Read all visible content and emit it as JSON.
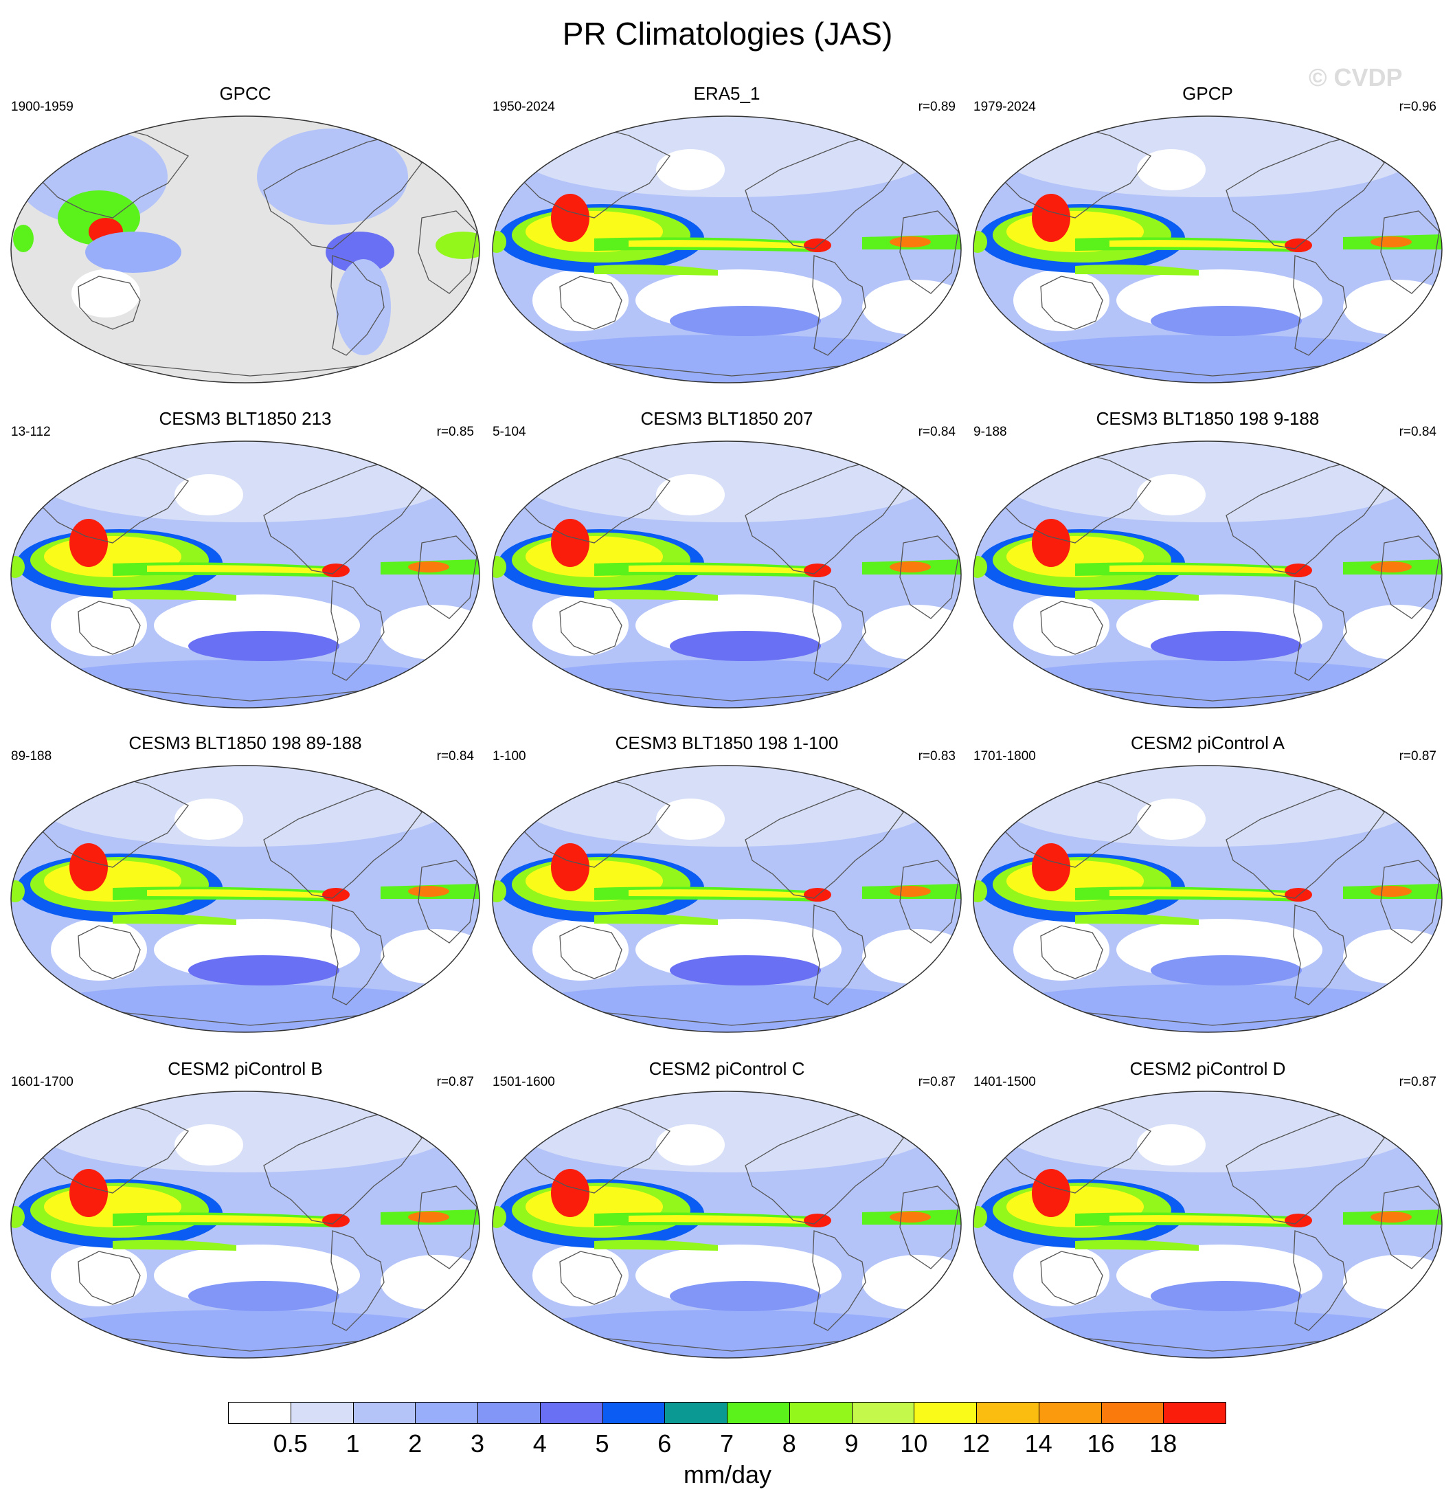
{
  "title": "PR Climatologies (JAS)",
  "watermark": "© CVDP",
  "panels": [
    {
      "title": "GPCC",
      "years": "1900-1959",
      "r": "",
      "variant": "obs_land"
    },
    {
      "title": "ERA5_1",
      "years": "1950-2024",
      "r": "r=0.89",
      "variant": "obs"
    },
    {
      "title": "GPCP",
      "years": "1979-2024",
      "r": "r=0.96",
      "variant": "obs"
    },
    {
      "title": "CESM3 BLT1850 213",
      "years": "13-112",
      "r": "r=0.85",
      "variant": "cesm3"
    },
    {
      "title": "CESM3 BLT1850 207",
      "years": "5-104",
      "r": "r=0.84",
      "variant": "cesm3"
    },
    {
      "title": "CESM3 BLT1850 198 9-188",
      "years": "9-188",
      "r": "r=0.84",
      "variant": "cesm3"
    },
    {
      "title": "CESM3 BLT1850 198 89-188",
      "years": "89-188",
      "r": "r=0.84",
      "variant": "cesm3"
    },
    {
      "title": "CESM3 BLT1850 198 1-100",
      "years": "1-100",
      "r": "r=0.83",
      "variant": "cesm3"
    },
    {
      "title": "CESM2 piControl A",
      "years": "1701-1800",
      "r": "r=0.87",
      "variant": "cesm2"
    },
    {
      "title": "CESM2 piControl B",
      "years": "1601-1700",
      "r": "r=0.87",
      "variant": "cesm2"
    },
    {
      "title": "CESM2 piControl C",
      "years": "1501-1600",
      "r": "r=0.87",
      "variant": "cesm2"
    },
    {
      "title": "CESM2 piControl D",
      "years": "1401-1500",
      "r": "r=0.87",
      "variant": "cesm2"
    }
  ],
  "colorbar": {
    "units": "mm/day",
    "colors": [
      "#ffffff",
      "#d6def8",
      "#b4c4f8",
      "#98aefa",
      "#8196f7",
      "#6a70f3",
      "#0a5cf2",
      "#0b9a93",
      "#5bf21c",
      "#93f71c",
      "#c4f84a",
      "#fbfb1a",
      "#fbbd0f",
      "#fb9a0c",
      "#fb7a0c",
      "#fb1d0c"
    ],
    "ticks": [
      "0.5",
      "1",
      "2",
      "3",
      "4",
      "5",
      "6",
      "7",
      "8",
      "9",
      "10",
      "12",
      "14",
      "16",
      "18"
    ]
  },
  "legend": {
    "land_mask_color": "#e4e4e4",
    "coast_color": "#555555"
  }
}
